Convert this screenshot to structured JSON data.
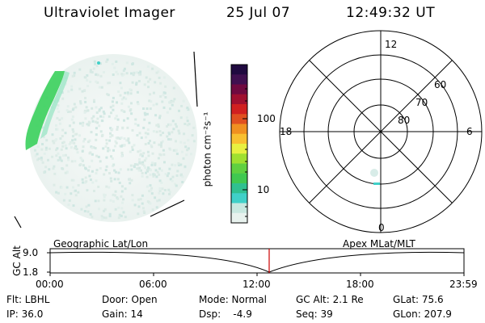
{
  "header": {
    "instrument": "Ultraviolet Imager",
    "date": "25 Jul 07",
    "time": "12:49:32 UT"
  },
  "colorbar": {
    "unit_label": "photon cm⁻²s⁻¹",
    "ticks": [
      "100",
      "10"
    ],
    "colors": [
      "#e8f2ee",
      "#c8e8e0",
      "#40d0c8",
      "#30c090",
      "#40c850",
      "#60d040",
      "#a0e030",
      "#e8f040",
      "#f8c030",
      "#f09020",
      "#e05020",
      "#d02020",
      "#a01030",
      "#700a40",
      "#401050",
      "#200a40"
    ]
  },
  "polar_plot": {
    "mlt_labels": {
      "top": "12",
      "right": "6",
      "bottom": "0",
      "left": "18"
    },
    "lat_labels": [
      "60",
      "70",
      "80"
    ]
  },
  "timeline": {
    "y_label": "GC Alt",
    "y_ticks": [
      "9.0",
      "1.8"
    ],
    "left_title": "Geographic Lat/Lon",
    "right_title": "Apex  MLat/MLT",
    "x_ticks": [
      "00:00",
      "06:00",
      "12:00",
      "18:00",
      "23:59"
    ],
    "marker_color": "#cc0000"
  },
  "info": {
    "filter": "Flt: LBHL",
    "door": "Door: Open",
    "mode": "Mode: Normal",
    "gc_alt": "GC Alt: 2.1 Re",
    "glat": "GLat:  75.6",
    "ip": "IP: 36.0",
    "gain": "Gain: 14",
    "dsp": "Dsp:    -4.9",
    "seq": "Seq: 39",
    "glon": "GLon: 207.9"
  }
}
